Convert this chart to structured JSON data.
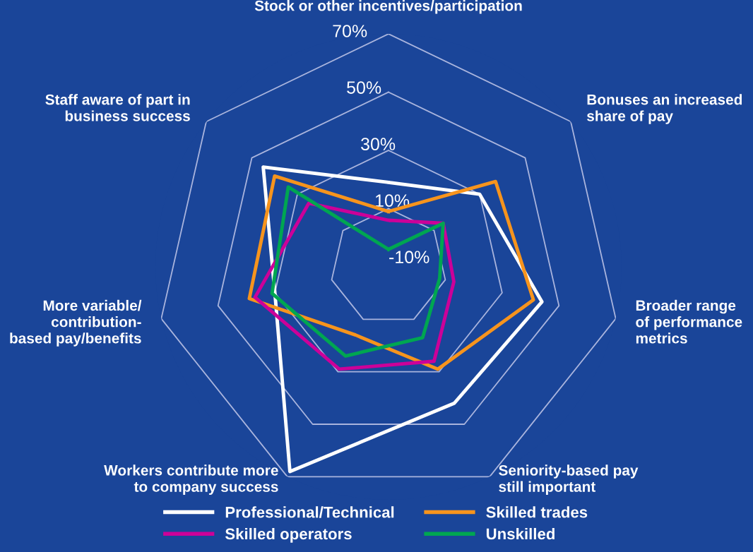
{
  "chart_data": {
    "type": "radar",
    "categories": [
      "Stock or other incentives/participation",
      "Bonuses an increased\nshare of pay",
      "Broader range\nof performance\nmetrics",
      "Seniority-based pay\nstill important",
      "Workers contribute more\nto company success",
      "More variable/\ncontribution-\nbased pay/benefits",
      "Staff aware of part in\nbusiness success"
    ],
    "series": [
      {
        "name": "Professional/Technical",
        "color": "#ffffff",
        "values": [
          19,
          30,
          44,
          42,
          68,
          30,
          45
        ]
      },
      {
        "name": "Skilled trades",
        "color": "#f7941d",
        "values": [
          9,
          37,
          41,
          29,
          16,
          39,
          40
        ]
      },
      {
        "name": "Skilled operators",
        "color": "#cc0099",
        "values": [
          6,
          14,
          13,
          26,
          29,
          37,
          25
        ]
      },
      {
        "name": "Unskilled",
        "color": "#00a651",
        "values": [
          -4,
          14,
          8,
          17,
          24,
          31,
          34
        ]
      }
    ],
    "ylim": [
      -10,
      70
    ],
    "yticks": [
      {
        "value": -10,
        "label": "-10%"
      },
      {
        "value": 10,
        "label": "10%"
      },
      {
        "value": 30,
        "label": "30%"
      },
      {
        "value": 50,
        "label": "50%"
      },
      {
        "value": 70,
        "label": "70%"
      }
    ],
    "grid": true,
    "legend": "bottom",
    "line_style": "solid",
    "marker": "none"
  }
}
